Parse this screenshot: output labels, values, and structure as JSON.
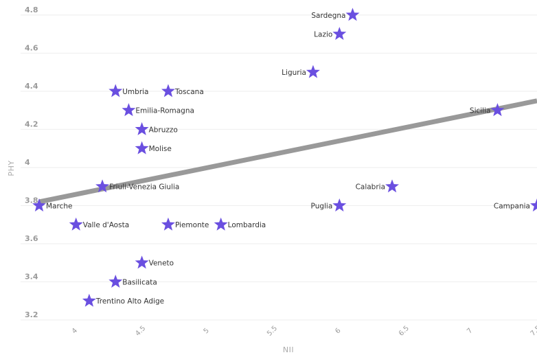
{
  "chart_data": {
    "type": "scatter",
    "xlabel": "NII",
    "ylabel": "PHY",
    "xlim": [
      3.72,
      7.5
    ],
    "ylim": [
      3.2,
      4.85
    ],
    "xticks": [
      "4",
      "4.5",
      "5",
      "5.5",
      "6",
      "6.5",
      "7",
      "7.5"
    ],
    "xtick_values": [
      4,
      4.5,
      5,
      5.5,
      6,
      6.5,
      7,
      7.5
    ],
    "yticks": [
      "3.2",
      "3.4",
      "3.6",
      "3.8",
      "4",
      "4.2",
      "4.4",
      "4.6",
      "4.8"
    ],
    "ytick_values": [
      3.2,
      3.4,
      3.6,
      3.8,
      4.0,
      4.2,
      4.4,
      4.6,
      4.8
    ],
    "grid": true,
    "marker": "star",
    "marker_color": "#6a4fe0",
    "trendline_color": "#999999",
    "trendline": {
      "x": [
        3.72,
        7.5
      ],
      "y": [
        3.82,
        4.35
      ]
    },
    "points": [
      {
        "label": "Sardegna",
        "x": 6.1,
        "y": 4.8
      },
      {
        "label": "Lazio",
        "x": 6.0,
        "y": 4.7
      },
      {
        "label": "Liguria",
        "x": 5.8,
        "y": 4.5
      },
      {
        "label": "Umbria",
        "x": 4.3,
        "y": 4.4
      },
      {
        "label": "Toscana",
        "x": 4.7,
        "y": 4.4
      },
      {
        "label": "Emilia-Romagna",
        "x": 4.4,
        "y": 4.3
      },
      {
        "label": "Sicilia",
        "x": 7.2,
        "y": 4.3
      },
      {
        "label": "Abruzzo",
        "x": 4.5,
        "y": 4.2
      },
      {
        "label": "Molise",
        "x": 4.5,
        "y": 4.1
      },
      {
        "label": "Friuli-Venezia Giulia",
        "x": 4.2,
        "y": 3.9
      },
      {
        "label": "Calabria",
        "x": 6.4,
        "y": 3.9
      },
      {
        "label": "Marche",
        "x": 3.72,
        "y": 3.8
      },
      {
        "label": "Puglia",
        "x": 6.0,
        "y": 3.8
      },
      {
        "label": "Campania",
        "x": 7.5,
        "y": 3.8
      },
      {
        "label": "Valle d'Aosta",
        "x": 4.0,
        "y": 3.7
      },
      {
        "label": "Piemonte",
        "x": 4.7,
        "y": 3.7
      },
      {
        "label": "Lombardia",
        "x": 5.1,
        "y": 3.7
      },
      {
        "label": "Veneto",
        "x": 4.5,
        "y": 3.5
      },
      {
        "label": "Basilicata",
        "x": 4.3,
        "y": 3.4
      },
      {
        "label": "Trentino Alto Adige",
        "x": 4.1,
        "y": 3.3
      }
    ]
  }
}
